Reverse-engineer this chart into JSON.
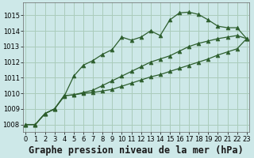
{
  "title": "Graphe pression niveau de la mer (hPa)",
  "background_color": "#cde8e8",
  "grid_color": "#aaccbb",
  "line_color": "#2d5e2d",
  "x_ticks": [
    0,
    1,
    2,
    3,
    4,
    5,
    6,
    7,
    8,
    9,
    10,
    11,
    12,
    13,
    14,
    15,
    16,
    17,
    18,
    19,
    20,
    21,
    22,
    23
  ],
  "y_ticks": [
    1008,
    1009,
    1010,
    1011,
    1012,
    1013,
    1014,
    1015
  ],
  "ylim": [
    1007.5,
    1015.8
  ],
  "xlim": [
    -0.3,
    23.3
  ],
  "series": [
    [
      1008.0,
      1008.0,
      1008.7,
      1009.0,
      1009.8,
      1011.1,
      1011.8,
      1012.1,
      1012.5,
      1012.8,
      1013.6,
      1013.4,
      1013.6,
      1014.0,
      1013.7,
      1014.7,
      1015.15,
      1015.2,
      1015.05,
      1014.7,
      1014.3,
      1014.2,
      1014.2,
      1013.5
    ],
    [
      1008.0,
      1008.0,
      1008.7,
      1009.0,
      1009.85,
      1009.9,
      1010.05,
      1010.2,
      1010.5,
      1010.8,
      1011.1,
      1011.4,
      1011.7,
      1012.0,
      1012.2,
      1012.4,
      1012.7,
      1013.0,
      1013.2,
      1013.35,
      1013.5,
      1013.6,
      1013.7,
      1013.5
    ],
    [
      1008.0,
      1008.0,
      1008.7,
      1009.0,
      1009.85,
      1009.9,
      1010.0,
      1010.05,
      1010.15,
      1010.25,
      1010.45,
      1010.65,
      1010.85,
      1011.05,
      1011.2,
      1011.4,
      1011.6,
      1011.8,
      1012.0,
      1012.2,
      1012.45,
      1012.65,
      1012.85,
      1013.5
    ]
  ],
  "marker": "^",
  "marker_size": 3.5,
  "linewidth": 0.9,
  "title_fontsize": 8.5,
  "tick_fontsize": 6.0
}
